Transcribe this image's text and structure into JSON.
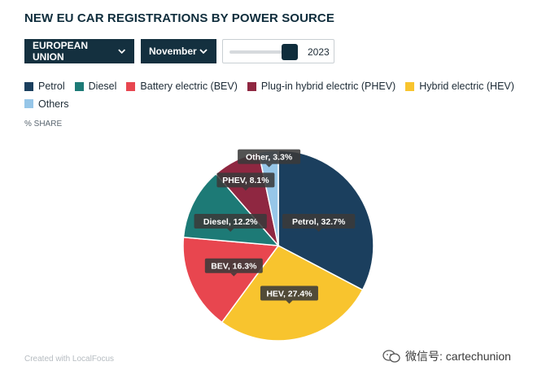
{
  "title": "NEW EU CAR REGISTRATIONS BY POWER SOURCE",
  "controls": {
    "region": "EUROPEAN UNION",
    "month": "November",
    "year": "2023",
    "year_position": 0.85
  },
  "legend": [
    {
      "label": "Petrol",
      "color": "#1b3f5e"
    },
    {
      "label": "Diesel",
      "color": "#1d7a76"
    },
    {
      "label": "Battery electric (BEV)",
      "color": "#e8464f"
    },
    {
      "label": "Plug-in hybrid electric (PHEV)",
      "color": "#8f2741"
    },
    {
      "label": "Hybrid electric (HEV)",
      "color": "#f8c42e"
    },
    {
      "label": "Others",
      "color": "#96c6e8"
    }
  ],
  "y_label": "% SHARE",
  "chart_data": {
    "type": "pie",
    "unit": "%",
    "slices": [
      {
        "name": "Petrol",
        "value": 32.7,
        "label": "Petrol, 32.7%",
        "color": "#1b3f5e"
      },
      {
        "name": "HEV",
        "value": 27.4,
        "label": "HEV, 27.4%",
        "color": "#f8c42e"
      },
      {
        "name": "BEV",
        "value": 16.3,
        "label": "BEV, 16.3%",
        "color": "#e8464f"
      },
      {
        "name": "Diesel",
        "value": 12.2,
        "label": "Diesel, 12.2%",
        "color": "#1d7a76"
      },
      {
        "name": "PHEV",
        "value": 8.1,
        "label": "PHEV, 8.1%",
        "color": "#8f2741"
      },
      {
        "name": "Other",
        "value": 3.3,
        "label": "Other, 3.3%",
        "color": "#96c6e8"
      }
    ]
  },
  "footer": "Created with LocalFocus",
  "watermark": "微信号: cartechunion"
}
